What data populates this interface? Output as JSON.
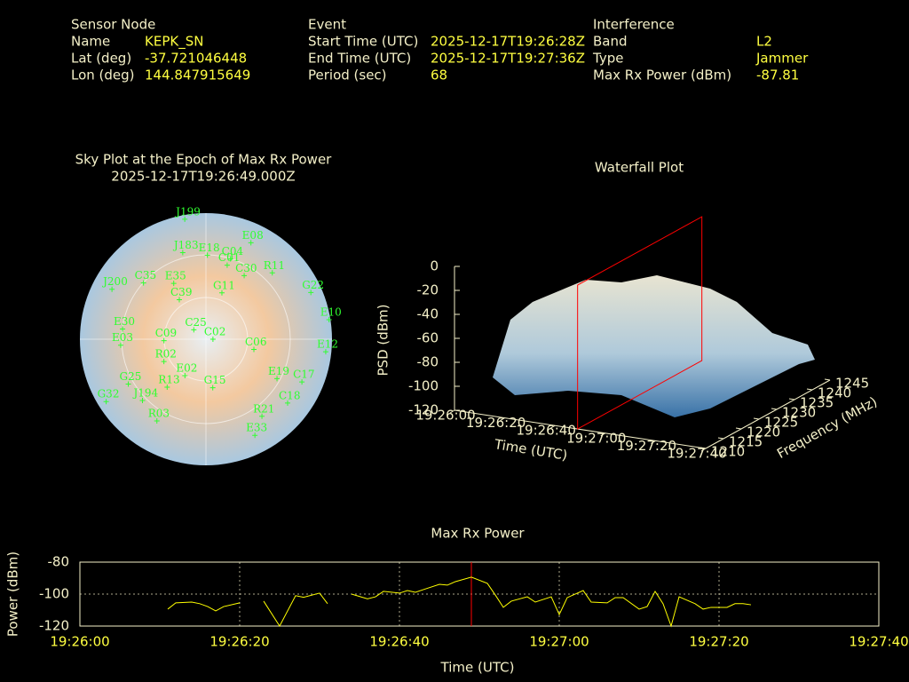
{
  "header": {
    "sensor_node": {
      "title": "Sensor Node",
      "fields": [
        {
          "label": "Name",
          "value": "KEPK_SN"
        },
        {
          "label": "Lat (deg)",
          "value": -37.721046448
        },
        {
          "label": "Lon (deg)",
          "value": 144.847915649
        }
      ]
    },
    "event": {
      "title": "Event",
      "fields": [
        {
          "label": "Start Time (UTC)",
          "value": "2025-12-17T19:26:28Z"
        },
        {
          "label": "End Time (UTC)",
          "value": "2025-12-17T19:27:36Z"
        },
        {
          "label": "Period (sec)",
          "value": 68
        }
      ]
    },
    "interference": {
      "title": "Interference",
      "fields": [
        {
          "label": "Band",
          "value": "L2"
        },
        {
          "label": "Type",
          "value": "Jammer"
        },
        {
          "label": "Max Rx Power (dBm)",
          "value": -87.81
        }
      ]
    }
  },
  "chart_data": [
    {
      "type": "polar",
      "title": "Sky Plot at the Epoch of Max Rx Power",
      "subtitle": "2025-12-17T19:26:49.000Z",
      "color": "#30ff30",
      "labels": [
        "J199",
        "J183",
        "E18",
        "E08",
        "C04",
        "C01",
        "C30",
        "R11",
        "G11",
        "G22",
        "E10",
        "E12",
        "C17",
        "E19",
        "C18",
        "R21",
        "E33",
        "R03",
        "G32",
        "G25",
        "J194",
        "R13",
        "E02",
        "G15",
        "R02",
        "E03",
        "E30",
        "C09",
        "C35",
        "C39",
        "E35",
        "J200",
        "C25",
        "C02",
        "C06"
      ],
      "azimuth": [
        350,
        345,
        1,
        25,
        17,
        16,
        31,
        45,
        19,
        66,
        81,
        96,
        114,
        119,
        128,
        144,
        153,
        211,
        238,
        240,
        226,
        219,
        210,
        172,
        242,
        266,
        277,
        268,
        312,
        326,
        330,
        298,
        308,
        90,
        102
      ],
      "elevation": [
        3,
        26,
        30,
        14,
        30,
        35,
        37,
        23,
        55,
        8,
        1,
        4,
        15,
        32,
        16,
        22,
        13,
        22,
        6,
        26,
        27,
        46,
        60,
        55,
        56,
        29,
        30,
        60,
        30,
        56,
        44,
        14,
        79,
        85,
        55
      ]
    },
    {
      "type": "waterfall3d",
      "title": "Waterfall Plot",
      "xlabel": "Time (UTC)",
      "ylabel": "Frequency (MHz)",
      "zlabel": "PSD (dBm)",
      "xlim": [
        "19:26:00",
        "19:27:40"
      ],
      "xticks": [
        "19:26:00",
        "19:26:20",
        "19:26:40",
        "19:27:00",
        "19:27:20",
        "19:27:40"
      ],
      "ylim": [
        1210,
        1245
      ],
      "yticks": [
        1210,
        1215,
        1220,
        1225,
        1230,
        1235,
        1240,
        1245
      ],
      "zlim": [
        -120,
        0
      ],
      "zticks": [
        0,
        -20,
        -40,
        -60,
        -80,
        -100,
        -120
      ],
      "marker_x": "19:26:49",
      "marker_color": "#ff0000"
    },
    {
      "type": "line",
      "title": "Max Rx Power",
      "xlabel": "Time (UTC)",
      "ylabel": "Power (dBm)",
      "color": "#ffff00",
      "x": [
        "19:26:11",
        "19:26:12",
        "19:26:14",
        "19:26:15",
        "19:26:16",
        "19:26:17",
        "19:26:18",
        "19:26:20",
        "19:26:21",
        "19:26:23",
        "19:26:25",
        "19:26:27",
        "19:26:28",
        "19:26:30",
        "19:26:31",
        "19:26:32",
        "19:26:34",
        "19:26:36",
        "19:26:37",
        "19:26:38",
        "19:26:40",
        "19:26:41",
        "19:26:42",
        "19:26:43",
        "19:26:45",
        "19:26:46",
        "19:26:47",
        "19:26:49",
        "19:26:51",
        "19:26:52",
        "19:26:53",
        "19:26:54",
        "19:26:56",
        "19:26:57",
        "19:26:59",
        "19:27:00",
        "19:27:01",
        "19:27:03",
        "19:27:04",
        "19:27:06",
        "19:27:07",
        "19:27:08",
        "19:27:10",
        "19:27:11",
        "19:27:12",
        "19:27:13",
        "19:27:14",
        "19:27:15",
        "19:27:17",
        "19:27:18",
        "19:27:19",
        "19:27:21",
        "19:27:22",
        "19:27:23",
        "19:27:24"
      ],
      "values": [
        -109.4,
        -105.5,
        -105,
        -106,
        -107.8,
        -110.5,
        -107.8,
        -105.5,
        null,
        -104.4,
        -120,
        -101,
        -102,
        -99.4,
        -106,
        null,
        -100,
        -103,
        -101.7,
        -98.3,
        -99.4,
        -97.8,
        -98.9,
        -97.2,
        -93.9,
        -94.4,
        -92.2,
        -89.4,
        -93.3,
        -100.6,
        -108.3,
        -104.4,
        -101.7,
        -105,
        -101.7,
        -112.8,
        -102.2,
        -97.8,
        -105,
        -105.5,
        -102.2,
        -102.2,
        -109.4,
        -107.8,
        -98.3,
        -106.1,
        -120,
        -101.7,
        -106,
        -109.4,
        -108.3,
        -108.3,
        -106,
        -106,
        -106.7
      ],
      "xlim": [
        "19:26:00",
        "19:27:40"
      ],
      "xticks": [
        "19:26:00",
        "19:26:20",
        "19:26:40",
        "19:27:00",
        "19:27:20",
        "19:27:40"
      ],
      "ylim": [
        -120,
        -80
      ],
      "yticks": [
        -80,
        -100,
        -120
      ],
      "grid": true,
      "marker_x": "19:26:49",
      "marker_color": "#ff0000"
    }
  ]
}
